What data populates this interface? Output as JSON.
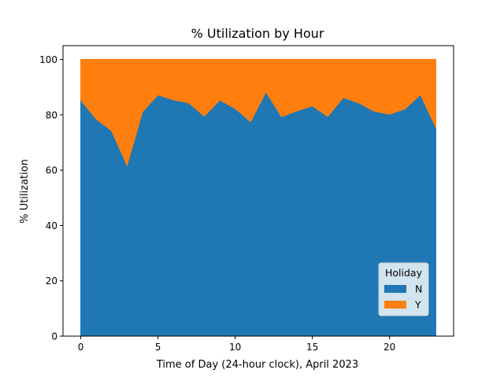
{
  "chart_data": {
    "type": "area",
    "stacked": true,
    "title": "% Utilization by Hour",
    "xlabel": "Time of Day (24-hour clock), April 2023",
    "ylabel": "% Utilization",
    "x": [
      0,
      1,
      2,
      3,
      4,
      5,
      6,
      7,
      8,
      9,
      10,
      11,
      12,
      13,
      14,
      15,
      16,
      17,
      18,
      19,
      20,
      21,
      22,
      23
    ],
    "xlim": [
      -1.15,
      24.15
    ],
    "ylim": [
      0,
      105
    ],
    "xticks": [
      0,
      5,
      10,
      15,
      20
    ],
    "yticks": [
      0,
      20,
      40,
      60,
      80,
      100
    ],
    "grid": false,
    "legend": {
      "title": "Holiday",
      "position": "lower-right"
    },
    "series": [
      {
        "name": "N",
        "color": "#1f77b4",
        "values": [
          85.3,
          78.5,
          74.2,
          61.7,
          81.1,
          87.2,
          85.4,
          84.3,
          79.5,
          85.3,
          82.3,
          77.5,
          88.3,
          79.3,
          81.4,
          83.2,
          79.4,
          86.2,
          84.3,
          81.3,
          80.2,
          82.1,
          87.3,
          75.4
        ]
      },
      {
        "name": "Y",
        "color": "#ff7f0e",
        "values": [
          14.7,
          21.5,
          25.8,
          38.3,
          18.9,
          12.8,
          14.6,
          15.7,
          20.5,
          14.7,
          17.7,
          22.5,
          11.7,
          20.7,
          18.6,
          16.8,
          20.6,
          13.8,
          15.7,
          18.7,
          19.8,
          17.9,
          12.7,
          24.6
        ]
      }
    ]
  }
}
